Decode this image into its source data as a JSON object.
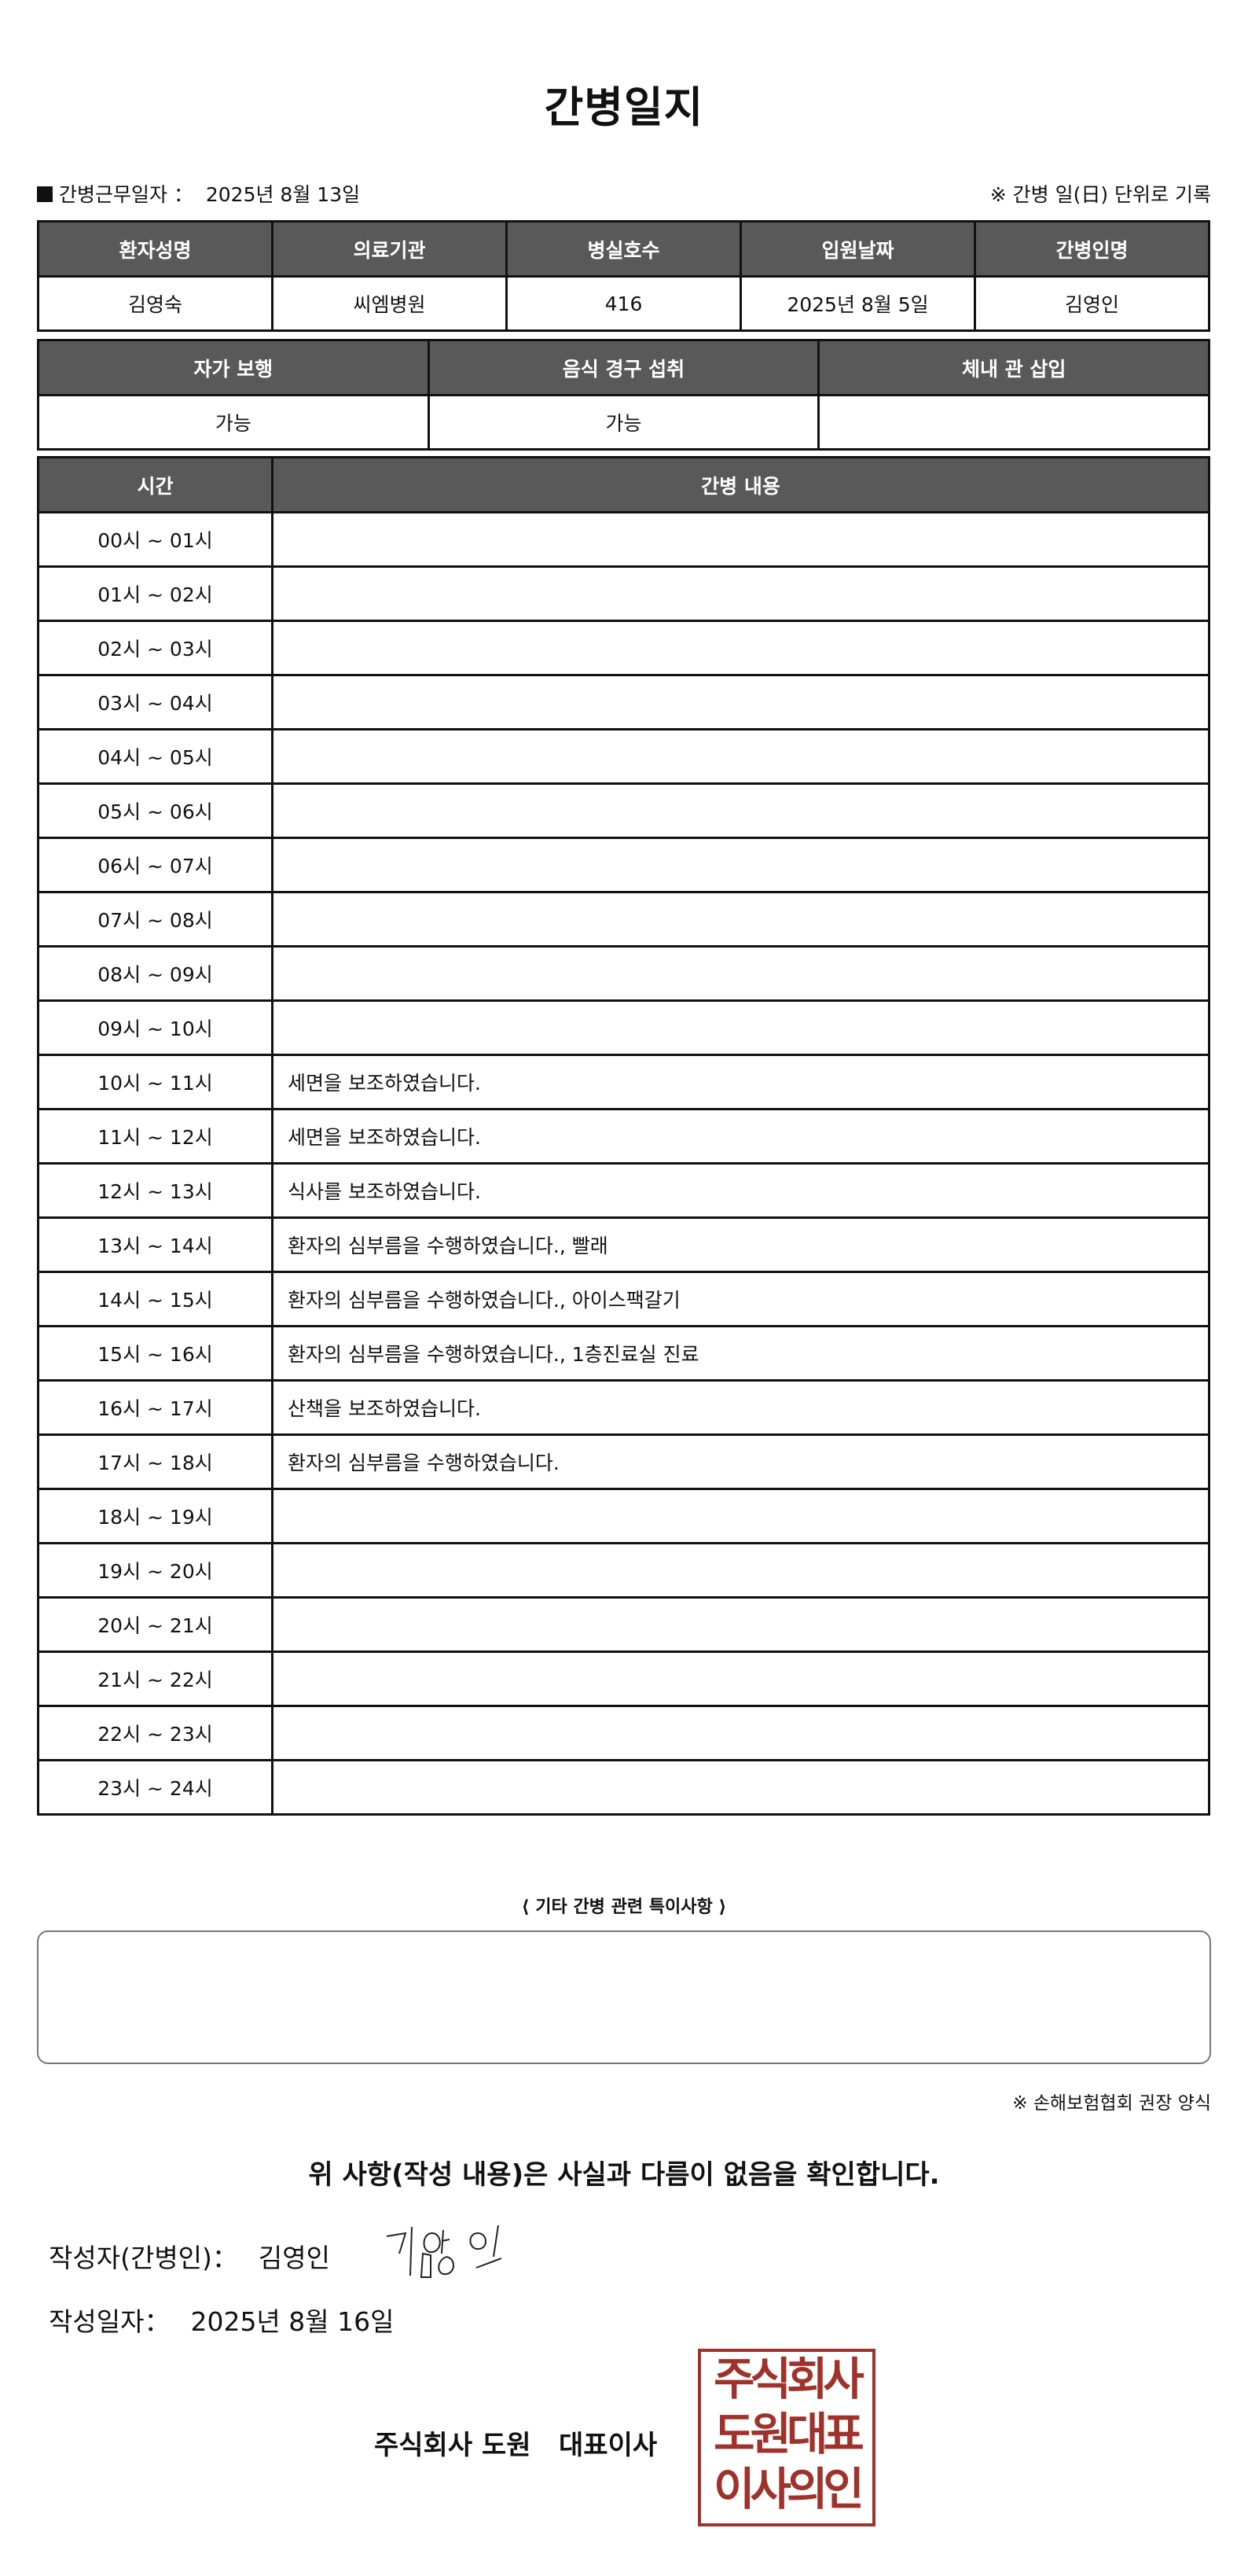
{
  "title": "간병일지",
  "work_date_label": "간병근무일자 ：",
  "work_date": "2025년 8월 13일",
  "record_note": "※ 간병 일(日) 단위로 기록",
  "patient_table": {
    "headers": [
      "환자성명",
      "의료기관",
      "병실호수",
      "입원날짜",
      "간병인명"
    ],
    "values": [
      "김영숙",
      "씨엠병원",
      "416",
      "2025년 8월 5일",
      "김영인"
    ]
  },
  "status_table": {
    "headers": [
      "자가 보행",
      "음식 경구 섭취",
      "체내 관 삽입"
    ],
    "values": [
      "가능",
      "가능",
      ""
    ]
  },
  "care_table": {
    "headers": [
      "시간",
      "간병 내용"
    ],
    "rows": [
      {
        "time": "00시 ~ 01시",
        "content": ""
      },
      {
        "time": "01시 ~ 02시",
        "content": ""
      },
      {
        "time": "02시 ~ 03시",
        "content": ""
      },
      {
        "time": "03시 ~ 04시",
        "content": ""
      },
      {
        "time": "04시 ~ 05시",
        "content": ""
      },
      {
        "time": "05시 ~ 06시",
        "content": ""
      },
      {
        "time": "06시 ~ 07시",
        "content": ""
      },
      {
        "time": "07시 ~ 08시",
        "content": ""
      },
      {
        "time": "08시 ~ 09시",
        "content": ""
      },
      {
        "time": "09시 ~ 10시",
        "content": ""
      },
      {
        "time": "10시 ~ 11시",
        "content": "세면을 보조하였습니다."
      },
      {
        "time": "11시 ~ 12시",
        "content": "세면을 보조하였습니다."
      },
      {
        "time": "12시 ~ 13시",
        "content": "식사를 보조하였습니다."
      },
      {
        "time": "13시 ~ 14시",
        "content": "환자의 심부름을 수행하였습니다., 빨래"
      },
      {
        "time": "14시 ~ 15시",
        "content": "환자의 심부름을 수행하였습니다., 아이스팩갈기"
      },
      {
        "time": "15시 ~ 16시",
        "content": "환자의 심부름을 수행하였습니다., 1층진료실 진료"
      },
      {
        "time": "16시 ~ 17시",
        "content": "산책을 보조하였습니다."
      },
      {
        "time": "17시 ~ 18시",
        "content": "환자의 심부름을 수행하였습니다."
      },
      {
        "time": "18시 ~ 19시",
        "content": ""
      },
      {
        "time": "19시 ~ 20시",
        "content": ""
      },
      {
        "time": "20시 ~ 21시",
        "content": ""
      },
      {
        "time": "21시 ~ 22시",
        "content": ""
      },
      {
        "time": "22시 ~ 23시",
        "content": ""
      },
      {
        "time": "23시 ~ 24시",
        "content": ""
      }
    ]
  },
  "notes_title": "⟨ 기타 간병 관련 특이사항 ⟩",
  "notes": "",
  "form_note": "※ 손해보험협회 권장 양식",
  "confirm_text": "위 사항(작성 내용)은 사실과 다름이 없음을 확인합니다.",
  "writer_label": "작성자(간병인)：",
  "writer_name": "김영인",
  "signature_text": "김영인",
  "write_date_label": "작성일자：",
  "write_date": "2025년 8월 16일",
  "company": "주식회사 도원   대표이사",
  "stamp_lines": [
    "주식회사",
    "도원대표",
    "이사의인"
  ],
  "colors": {
    "header_bg": "#595959",
    "stamp": "#a0322c",
    "watermark_blue": "#cfe2f1",
    "watermark_green": "#eef3d5"
  }
}
